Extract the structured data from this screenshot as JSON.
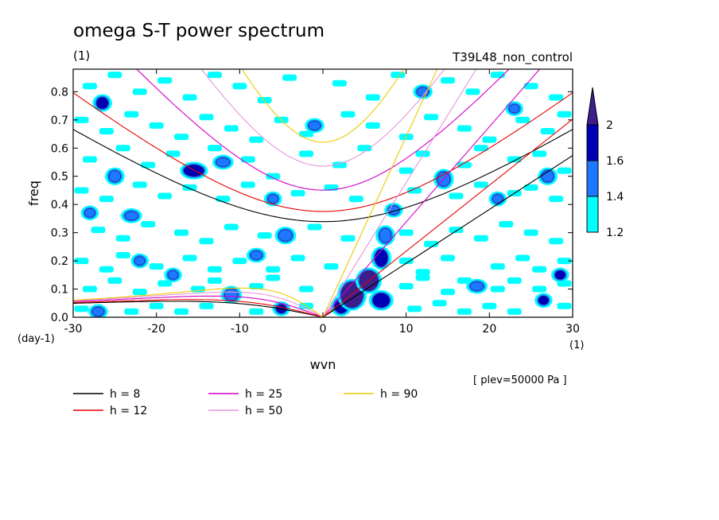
{
  "chart_data": {
    "type": "heatmap",
    "title": "omega S-T power spectrum",
    "subtitle": "(1)",
    "experiment": "T39L48_non_control",
    "xlabel": "wvn",
    "ylabel": "freq",
    "x_unit": "(1)",
    "y_unit": "(day-1)",
    "xlim": [
      -30,
      30
    ],
    "ylim": [
      0,
      0.88
    ],
    "xticks": [
      -30,
      -20,
      -10,
      0,
      10,
      20,
      30
    ],
    "xtick_labels": [
      "-30",
      "-20",
      "-10",
      "0",
      "10",
      "20",
      "30"
    ],
    "yticks": [
      0.0,
      0.1,
      0.2,
      0.3,
      0.4,
      0.5,
      0.6,
      0.7,
      0.8
    ],
    "ytick_labels": [
      "0.0",
      "0.1",
      "0.2",
      "0.3",
      "0.4",
      "0.5",
      "0.6",
      "0.7",
      "0.8"
    ],
    "annotation": "[ plev=50000 Pa ]",
    "colorbar": {
      "levels": [
        1.2,
        1.4,
        1.6,
        2
      ],
      "labels": [
        "1.2",
        "1.4",
        "1.6",
        "2"
      ],
      "colors": [
        "#00ffff",
        "#1e78ff",
        "#0000b4",
        "#3c1e8c"
      ]
    },
    "contour_patches": [
      {
        "x": 3.5,
        "y": 0.08,
        "w": 2.6,
        "h": 0.09,
        "level": 2
      },
      {
        "x": 5.5,
        "y": 0.13,
        "w": 2.2,
        "h": 0.07,
        "level": 2
      },
      {
        "x": 7,
        "y": 0.06,
        "w": 2,
        "h": 0.05,
        "level": 1.6
      },
      {
        "x": 2.2,
        "y": 0.04,
        "w": 1.6,
        "h": 0.05,
        "level": 1.6
      },
      {
        "x": 7,
        "y": 0.21,
        "w": 1.5,
        "h": 0.06,
        "level": 1.6
      },
      {
        "x": 7.5,
        "y": 0.29,
        "w": 1.4,
        "h": 0.05,
        "level": 1.4
      },
      {
        "x": 8.5,
        "y": 0.38,
        "w": 1.3,
        "h": 0.03,
        "level": 1.4
      },
      {
        "x": 14.5,
        "y": 0.49,
        "w": 1.5,
        "h": 0.05,
        "level": 1.4
      },
      {
        "x": 26.5,
        "y": 0.06,
        "w": 1.2,
        "h": 0.03,
        "level": 1.6
      },
      {
        "x": 28.5,
        "y": 0.15,
        "w": 1.2,
        "h": 0.03,
        "level": 1.6
      },
      {
        "x": 27,
        "y": 0.5,
        "w": 1.4,
        "h": 0.04,
        "level": 1.4
      },
      {
        "x": -26.5,
        "y": 0.76,
        "w": 1.4,
        "h": 0.04,
        "level": 1.6
      },
      {
        "x": -25,
        "y": 0.5,
        "w": 1.4,
        "h": 0.04,
        "level": 1.4
      },
      {
        "x": -28,
        "y": 0.37,
        "w": 1.2,
        "h": 0.03,
        "level": 1.4
      },
      {
        "x": -23,
        "y": 0.36,
        "w": 1.6,
        "h": 0.03,
        "level": 1.4
      },
      {
        "x": -15.5,
        "y": 0.52,
        "w": 2.4,
        "h": 0.04,
        "level": 1.6
      },
      {
        "x": -12,
        "y": 0.55,
        "w": 1.6,
        "h": 0.03,
        "level": 1.4
      },
      {
        "x": -22,
        "y": 0.2,
        "w": 1.2,
        "h": 0.03,
        "level": 1.4
      },
      {
        "x": -11,
        "y": 0.08,
        "w": 1.6,
        "h": 0.04,
        "level": 1.4
      },
      {
        "x": -5,
        "y": 0.03,
        "w": 1.2,
        "h": 0.03,
        "level": 1.6
      },
      {
        "x": -4.5,
        "y": 0.29,
        "w": 1.6,
        "h": 0.04,
        "level": 1.4
      },
      {
        "x": -6,
        "y": 0.42,
        "w": 1.2,
        "h": 0.03,
        "level": 1.4
      },
      {
        "x": -8,
        "y": 0.22,
        "w": 1.4,
        "h": 0.03,
        "level": 1.4
      },
      {
        "x": 18.5,
        "y": 0.11,
        "w": 1.6,
        "h": 0.03,
        "level": 1.4
      },
      {
        "x": 21,
        "y": 0.42,
        "w": 1.2,
        "h": 0.03,
        "level": 1.4
      },
      {
        "x": 12,
        "y": 0.8,
        "w": 1.4,
        "h": 0.03,
        "level": 1.4
      },
      {
        "x": -18,
        "y": 0.15,
        "w": 1.2,
        "h": 0.03,
        "level": 1.4
      },
      {
        "x": -27,
        "y": 0.02,
        "w": 1.4,
        "h": 0.03,
        "level": 1.4
      },
      {
        "x": -1,
        "y": 0.68,
        "w": 1.4,
        "h": 0.03,
        "level": 1.4
      },
      {
        "x": 23,
        "y": 0.74,
        "w": 1.2,
        "h": 0.03,
        "level": 1.4
      }
    ],
    "speckle": [
      [
        -28,
        0.82
      ],
      [
        -25,
        0.86
      ],
      [
        -22,
        0.8
      ],
      [
        -19,
        0.84
      ],
      [
        -16,
        0.78
      ],
      [
        -13,
        0.86
      ],
      [
        -10,
        0.82
      ],
      [
        -7,
        0.77
      ],
      [
        -4,
        0.85
      ],
      [
        2,
        0.83
      ],
      [
        6,
        0.78
      ],
      [
        9,
        0.86
      ],
      [
        15,
        0.84
      ],
      [
        18,
        0.8
      ],
      [
        21,
        0.86
      ],
      [
        25,
        0.82
      ],
      [
        28,
        0.78
      ],
      [
        -29,
        0.7
      ],
      [
        -26,
        0.66
      ],
      [
        -23,
        0.72
      ],
      [
        -20,
        0.68
      ],
      [
        -17,
        0.64
      ],
      [
        -14,
        0.71
      ],
      [
        -11,
        0.67
      ],
      [
        -8,
        0.63
      ],
      [
        -5,
        0.7
      ],
      [
        -2,
        0.65
      ],
      [
        3,
        0.72
      ],
      [
        6,
        0.68
      ],
      [
        10,
        0.64
      ],
      [
        13,
        0.71
      ],
      [
        17,
        0.67
      ],
      [
        20,
        0.63
      ],
      [
        24,
        0.7
      ],
      [
        27,
        0.66
      ],
      [
        29,
        0.72
      ],
      [
        -28,
        0.56
      ],
      [
        -24,
        0.6
      ],
      [
        -21,
        0.54
      ],
      [
        -18,
        0.58
      ],
      [
        -13,
        0.6
      ],
      [
        -9,
        0.56
      ],
      [
        -6,
        0.5
      ],
      [
        -2,
        0.58
      ],
      [
        2,
        0.54
      ],
      [
        5,
        0.6
      ],
      [
        10,
        0.52
      ],
      [
        12,
        0.58
      ],
      [
        17,
        0.54
      ],
      [
        19,
        0.6
      ],
      [
        23,
        0.56
      ],
      [
        26,
        0.58
      ],
      [
        29,
        0.52
      ],
      [
        -29,
        0.45
      ],
      [
        -26,
        0.42
      ],
      [
        -22,
        0.47
      ],
      [
        -19,
        0.43
      ],
      [
        -16,
        0.46
      ],
      [
        -12,
        0.42
      ],
      [
        -9,
        0.47
      ],
      [
        -3,
        0.44
      ],
      [
        1,
        0.46
      ],
      [
        4,
        0.42
      ],
      [
        11,
        0.45
      ],
      [
        16,
        0.43
      ],
      [
        19,
        0.47
      ],
      [
        23,
        0.44
      ],
      [
        25,
        0.46
      ],
      [
        28,
        0.42
      ],
      [
        -27,
        0.31
      ],
      [
        -24,
        0.28
      ],
      [
        -21,
        0.33
      ],
      [
        -17,
        0.3
      ],
      [
        -14,
        0.27
      ],
      [
        -11,
        0.32
      ],
      [
        -7,
        0.29
      ],
      [
        -1,
        0.32
      ],
      [
        3,
        0.28
      ],
      [
        10,
        0.3
      ],
      [
        13,
        0.26
      ],
      [
        16,
        0.31
      ],
      [
        19,
        0.28
      ],
      [
        22,
        0.33
      ],
      [
        25,
        0.3
      ],
      [
        28,
        0.27
      ],
      [
        -29,
        0.2
      ],
      [
        -26,
        0.17
      ],
      [
        -24,
        0.22
      ],
      [
        -20,
        0.18
      ],
      [
        -16,
        0.21
      ],
      [
        -13,
        0.17
      ],
      [
        -10,
        0.2
      ],
      [
        -6,
        0.17
      ],
      [
        -3,
        0.21
      ],
      [
        1,
        0.18
      ],
      [
        10,
        0.2
      ],
      [
        12,
        0.16
      ],
      [
        15,
        0.21
      ],
      [
        21,
        0.18
      ],
      [
        24,
        0.21
      ],
      [
        26,
        0.17
      ],
      [
        29,
        0.2
      ],
      [
        -28,
        0.1
      ],
      [
        -25,
        0.13
      ],
      [
        -22,
        0.09
      ],
      [
        -19,
        0.12
      ],
      [
        -15,
        0.1
      ],
      [
        -13,
        0.13
      ],
      [
        -8,
        0.11
      ],
      [
        -6,
        0.14
      ],
      [
        -2,
        0.1
      ],
      [
        10,
        0.11
      ],
      [
        12,
        0.14
      ],
      [
        15,
        0.09
      ],
      [
        17,
        0.13
      ],
      [
        21,
        0.1
      ],
      [
        23,
        0.13
      ],
      [
        26,
        0.1
      ],
      [
        29,
        0.12
      ],
      [
        -29,
        0.03
      ],
      [
        -23,
        0.02
      ],
      [
        -20,
        0.04
      ],
      [
        -17,
        0.02
      ],
      [
        -14,
        0.04
      ],
      [
        -8,
        0.02
      ],
      [
        -2,
        0.04
      ],
      [
        11,
        0.03
      ],
      [
        14,
        0.05
      ],
      [
        17,
        0.02
      ],
      [
        20,
        0.04
      ],
      [
        23,
        0.02
      ],
      [
        29,
        0.04
      ]
    ],
    "series": [
      {
        "name": "h = 8",
        "label": "h =  8",
        "color": "#000000",
        "equiv_depth_m": 8
      },
      {
        "name": "h = 12",
        "label": "h = 12",
        "color": "#e60000",
        "equiv_depth_m": 12
      },
      {
        "name": "h = 25",
        "label": "h = 25",
        "color": "#d200c8",
        "equiv_depth_m": 25
      },
      {
        "name": "h = 50",
        "label": "h = 50",
        "color": "#e696dc",
        "equiv_depth_m": 50
      },
      {
        "name": "h = 90",
        "label": "h = 90",
        "color": "#f0c800",
        "equiv_depth_m": 90
      }
    ]
  }
}
